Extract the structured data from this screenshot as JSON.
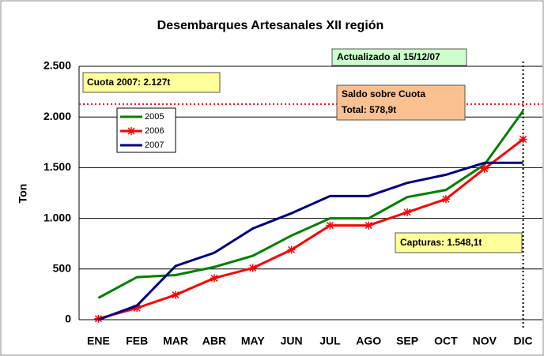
{
  "chart_data": {
    "type": "line",
    "title": "Desembarques Artesanales XII región",
    "y_label": "Ton",
    "categories": [
      "ENE",
      "FEB",
      "MAR",
      "ABR",
      "MAY",
      "JUN",
      "JUL",
      "AGO",
      "SEP",
      "OCT",
      "NOV",
      "DIC"
    ],
    "series": [
      {
        "name": "2005",
        "color": "#008000",
        "values": [
          215,
          420,
          440,
          520,
          630,
          830,
          1000,
          1000,
          1210,
          1280,
          1530,
          2060
        ]
      },
      {
        "name": "2006",
        "color": "#ff0000",
        "marker": "asterisk",
        "values": [
          10,
          115,
          245,
          410,
          510,
          690,
          930,
          930,
          1060,
          1190,
          1490,
          1780
        ]
      },
      {
        "name": "2007",
        "color": "#000080",
        "values": [
          0,
          140,
          530,
          660,
          900,
          1050,
          1220,
          1220,
          1350,
          1430,
          1548.1,
          1548.1
        ]
      }
    ],
    "ylim": [
      0,
      2500
    ],
    "yticks": [
      0,
      500,
      {
        "value": 1000,
        "label": "1.000"
      },
      {
        "value": 1500,
        "label": "1.500"
      },
      {
        "value": 2000,
        "label": "2.000"
      },
      {
        "value": 2500,
        "label": "2.500"
      }
    ],
    "grid": true,
    "quota_line": 2127,
    "annotations": {
      "updated": "Actualizado al 15/12/07",
      "quota": "Cuota 2007: 2.127t",
      "balance": [
        "Saldo sobre Cuota",
        "Total: 578,9t"
      ],
      "captures": "Capturas: 1.548,1t"
    }
  }
}
